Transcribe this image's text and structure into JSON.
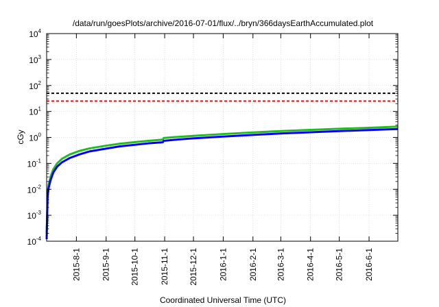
{
  "chart_data": {
    "type": "line",
    "title": "/data/run/goesPlots/archive/2016-07-01/flux/../bryn/366daysEarthAccumulated.plot",
    "xlabel": "Coordinated Universal Time (UTC)",
    "ylabel": "cGy",
    "x_range": [
      "2015-07-01",
      "2016-07-01"
    ],
    "y_range": [
      0.0001,
      10000
    ],
    "y_scale": "log",
    "grid": true,
    "x_ticks": [
      "2015-8-1",
      "2015-9-1",
      "2015-10-1",
      "2015-11-1",
      "2015-12-1",
      "2016-1-1",
      "2016-2-1",
      "2016-3-1",
      "2016-4-1",
      "2016-5-1",
      "2016-6-1"
    ],
    "y_ticks": [
      {
        "value": 0.0001,
        "base": "10",
        "exp": "-4"
      },
      {
        "value": 0.001,
        "base": "10",
        "exp": "-3"
      },
      {
        "value": 0.01,
        "base": "10",
        "exp": "-2"
      },
      {
        "value": 0.1,
        "base": "10",
        "exp": "-1"
      },
      {
        "value": 1,
        "base": "10",
        "exp": "0"
      },
      {
        "value": 10,
        "base": "10",
        "exp": "1"
      },
      {
        "value": 100,
        "base": "10",
        "exp": "2"
      },
      {
        "value": 1000,
        "base": "10",
        "exp": "3"
      },
      {
        "value": 10000,
        "base": "10",
        "exp": "4"
      }
    ],
    "reference_lines": [
      {
        "value": 50,
        "color": "#000000",
        "style": "dashed"
      },
      {
        "value": 25,
        "color": "#ff0000",
        "style": "dashed"
      }
    ],
    "series": [
      {
        "color": "#22bb22",
        "x": [
          "2015-07-01",
          "2015-07-02",
          "2015-07-03",
          "2015-07-05",
          "2015-07-08",
          "2015-07-12",
          "2015-07-17",
          "2015-07-25",
          "2015-08-04",
          "2015-08-15",
          "2015-09-01",
          "2015-09-15",
          "2015-10-01",
          "2015-10-15",
          "2015-10-30",
          "2015-10-31",
          "2015-11-15",
          "2015-12-01",
          "2016-01-01",
          "2016-02-01",
          "2016-03-01",
          "2016-04-01",
          "2016-05-01",
          "2016-06-01",
          "2016-07-01"
        ],
        "y": [
          0.0002,
          0.007,
          0.015,
          0.03,
          0.06,
          0.1,
          0.15,
          0.22,
          0.3,
          0.38,
          0.48,
          0.57,
          0.66,
          0.74,
          0.82,
          0.95,
          1.05,
          1.15,
          1.35,
          1.55,
          1.75,
          1.95,
          2.15,
          2.35,
          2.6
        ]
      },
      {
        "color": "#0000ff",
        "x": [
          "2015-07-01",
          "2015-07-02",
          "2015-07-03",
          "2015-07-05",
          "2015-07-08",
          "2015-07-12",
          "2015-07-17",
          "2015-07-25",
          "2015-08-04",
          "2015-08-15",
          "2015-09-01",
          "2015-09-15",
          "2015-10-01",
          "2015-10-15",
          "2015-10-30",
          "2015-10-31",
          "2015-11-15",
          "2015-12-01",
          "2016-01-01",
          "2016-02-01",
          "2016-03-01",
          "2016-04-01",
          "2016-05-01",
          "2016-06-01",
          "2016-07-01"
        ],
        "y": [
          0.00012,
          0.005,
          0.011,
          0.022,
          0.045,
          0.075,
          0.11,
          0.16,
          0.22,
          0.29,
          0.37,
          0.45,
          0.52,
          0.59,
          0.65,
          0.74,
          0.83,
          0.92,
          1.08,
          1.25,
          1.42,
          1.58,
          1.75,
          1.92,
          2.1
        ]
      }
    ]
  }
}
